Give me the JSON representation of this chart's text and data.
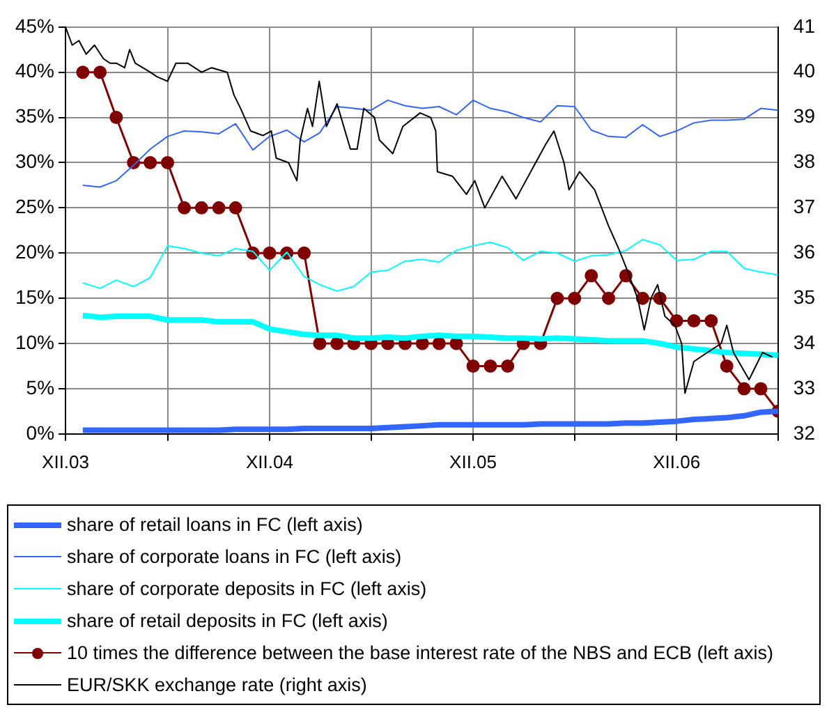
{
  "chart_data": {
    "type": "line",
    "xlim": [
      "2003-12",
      "2007-06"
    ],
    "xticks": [
      {
        "value": "2003-12",
        "label": "XII.03"
      },
      {
        "value": "2004-06",
        "label": null
      },
      {
        "value": "2004-12",
        "label": "XII.04"
      },
      {
        "value": "2005-06",
        "label": null
      },
      {
        "value": "2005-12",
        "label": "XII.05"
      },
      {
        "value": "2006-06",
        "label": null
      },
      {
        "value": "2006-12",
        "label": "XII.06"
      },
      {
        "value": "2007-06",
        "label": null
      }
    ],
    "ylim": [
      0,
      45
    ],
    "yticks": [
      {
        "value": 0,
        "label": "0%"
      },
      {
        "value": 5,
        "label": "5%"
      },
      {
        "value": 10,
        "label": "10%"
      },
      {
        "value": 15,
        "label": "15%"
      },
      {
        "value": 20,
        "label": "20%"
      },
      {
        "value": 25,
        "label": "25%"
      },
      {
        "value": 30,
        "label": "30%"
      },
      {
        "value": 35,
        "label": "35%"
      },
      {
        "value": 40,
        "label": "40%"
      },
      {
        "value": 45,
        "label": "45%"
      }
    ],
    "y2lim": [
      32,
      41
    ],
    "y2ticks": [
      32,
      33,
      34,
      35,
      36,
      37,
      38,
      39,
      40,
      41
    ],
    "grid": true,
    "legend": "bottom",
    "x": [
      "2004-01",
      "2004-02",
      "2004-03",
      "2004-04",
      "2004-05",
      "2004-06",
      "2004-07",
      "2004-08",
      "2004-09",
      "2004-10",
      "2004-11",
      "2004-12",
      "2005-01",
      "2005-02",
      "2005-03",
      "2005-04",
      "2005-05",
      "2005-06",
      "2005-07",
      "2005-08",
      "2005-09",
      "2005-10",
      "2005-11",
      "2005-12",
      "2006-01",
      "2006-02",
      "2006-03",
      "2006-04",
      "2006-05",
      "2006-06",
      "2006-07",
      "2006-08",
      "2006-09",
      "2006-10",
      "2006-11",
      "2006-12",
      "2007-01",
      "2007-02",
      "2007-03",
      "2007-04",
      "2007-05",
      "2007-06"
    ],
    "series": [
      {
        "name": "share of retail loans in FC (left axis)",
        "color": "#3366ff",
        "marker": "none",
        "values": [
          0.4,
          0.4,
          0.4,
          0.4,
          0.4,
          0.4,
          0.4,
          0.4,
          0.4,
          0.5,
          0.5,
          0.5,
          0.5,
          0.6,
          0.6,
          0.6,
          0.6,
          0.6,
          0.7,
          0.8,
          0.9,
          1.0,
          1.0,
          1.0,
          1.0,
          1.0,
          1.0,
          1.1,
          1.1,
          1.1,
          1.1,
          1.1,
          1.2,
          1.2,
          1.3,
          1.4,
          1.6,
          1.7,
          1.8,
          2.0,
          2.4,
          2.5
        ]
      },
      {
        "name": "share of corporate loans in FC (left axis)",
        "color": "#3366ff",
        "marker": "none",
        "values": [
          27.5,
          27.3,
          28.0,
          29.7,
          31.5,
          32.9,
          33.5,
          33.4,
          33.2,
          34.3,
          31.4,
          32.9,
          33.6,
          32.3,
          33.3,
          36.2,
          36.0,
          35.8,
          36.9,
          36.3,
          36.0,
          36.2,
          35.3,
          36.9,
          36.0,
          35.6,
          35.0,
          34.5,
          36.3,
          36.2,
          33.6,
          32.9,
          32.8,
          34.2,
          32.9,
          33.5,
          34.4,
          34.7,
          34.7,
          34.8,
          36.0,
          35.8
        ]
      },
      {
        "name": "share of corporate deposits in FC (left axis)",
        "color": "#00ffff",
        "marker": "none",
        "values": [
          16.7,
          16.1,
          17.0,
          16.3,
          17.3,
          20.8,
          20.5,
          20.0,
          19.7,
          20.5,
          20.2,
          18.1,
          20.1,
          17.4,
          16.5,
          15.8,
          16.3,
          17.9,
          18.1,
          19.1,
          19.3,
          19.0,
          20.3,
          20.8,
          21.2,
          20.6,
          19.2,
          20.2,
          20.0,
          19.1,
          19.7,
          19.8,
          20.3,
          21.5,
          20.9,
          19.2,
          19.3,
          20.2,
          20.2,
          18.3,
          17.9,
          17.6
        ]
      },
      {
        "name": "share of retail deposits in FC (left axis)",
        "color": "#00ffff",
        "marker": "none",
        "values": [
          13.1,
          12.9,
          13.0,
          13.0,
          13.0,
          12.6,
          12.6,
          12.6,
          12.4,
          12.4,
          12.4,
          11.6,
          11.3,
          11.0,
          10.9,
          10.9,
          10.6,
          10.6,
          10.7,
          10.6,
          10.8,
          10.9,
          10.8,
          10.8,
          10.7,
          10.6,
          10.6,
          10.5,
          10.6,
          10.5,
          10.4,
          10.3,
          10.3,
          10.3,
          10.0,
          9.6,
          9.4,
          9.2,
          9.0,
          8.9,
          8.8,
          8.7
        ]
      },
      {
        "name": "10 times the difference between the base interest rate of the NBS and ECB (left axis)",
        "color": "#800000",
        "marker": "circle",
        "values": [
          40,
          40,
          35,
          30,
          30,
          30,
          25,
          25,
          25,
          25,
          20,
          20,
          20,
          20,
          10,
          10,
          10,
          10,
          10,
          10,
          10,
          10,
          10,
          7.5,
          7.5,
          7.5,
          10,
          10,
          15,
          15,
          17.5,
          15,
          17.5,
          15,
          15,
          12.5,
          12.5,
          12.5,
          7.5,
          5,
          5,
          2.5
        ]
      },
      {
        "name": "EUR/SKK exchange rate (right axis)",
        "color": "#000000",
        "marker": "none",
        "axis": "y2",
        "x": [
          "2003-12-01",
          "2003-12-13",
          "2003-12-25",
          "2004-01-07",
          "2004-01-22",
          "2004-02-07",
          "2004-02-19",
          "2004-03-01",
          "2004-03-16",
          "2004-03-25",
          "2004-04-04",
          "2004-05-01",
          "2004-05-13",
          "2004-06-01",
          "2004-06-16",
          "2004-07-07",
          "2004-08-01",
          "2004-08-19",
          "2004-09-16",
          "2004-09-28",
          "2004-10-10",
          "2004-10-28",
          "2004-11-19",
          "2004-12-04",
          "2004-12-13",
          "2005-01-04",
          "2005-01-19",
          "2005-01-25",
          "2005-02-07",
          "2005-02-16",
          "2005-02-28",
          "2005-03-13",
          "2005-04-01",
          "2005-04-25",
          "2005-05-07",
          "2005-05-19",
          "2005-06-07",
          "2005-06-16",
          "2005-07-10",
          "2005-07-28",
          "2005-08-28",
          "2005-09-16",
          "2005-09-25",
          "2005-09-28",
          "2005-10-25",
          "2005-11-19",
          "2005-12-04",
          "2005-12-22",
          "2006-01-22",
          "2006-02-16",
          "2006-03-10",
          "2006-04-10",
          "2006-04-25",
          "2006-05-13",
          "2006-05-22",
          "2006-06-10",
          "2006-07-07",
          "2006-08-01",
          "2006-08-19",
          "2006-09-04",
          "2006-09-22",
          "2006-10-04",
          "2006-10-16",
          "2006-10-28",
          "2006-11-10",
          "2006-11-28",
          "2006-12-10",
          "2006-12-16",
          "2007-01-01",
          "2007-01-25",
          "2007-02-19",
          "2007-03-01",
          "2007-03-13",
          "2007-04-10",
          "2007-04-22",
          "2007-05-04",
          "2007-05-22"
        ],
        "values": [
          41.0,
          40.6,
          40.7,
          40.4,
          40.6,
          40.3,
          40.2,
          40.2,
          40.1,
          40.5,
          40.2,
          40.0,
          39.9,
          39.8,
          40.2,
          40.2,
          40.0,
          40.1,
          40.0,
          39.5,
          39.2,
          38.7,
          38.6,
          38.7,
          38.1,
          38.0,
          37.6,
          38.5,
          39.2,
          38.8,
          39.8,
          38.8,
          39.3,
          38.3,
          38.3,
          39.2,
          39.0,
          38.5,
          38.2,
          38.8,
          39.1,
          39.0,
          38.7,
          37.8,
          37.7,
          37.3,
          37.6,
          37.0,
          37.7,
          37.2,
          37.7,
          38.4,
          38.7,
          38.0,
          37.4,
          37.8,
          37.4,
          36.6,
          36.1,
          35.6,
          35.0,
          34.3,
          35.0,
          35.3,
          34.6,
          34.4,
          34.0,
          32.9,
          33.6,
          33.8,
          34.0,
          34.4,
          33.8,
          33.2,
          33.5,
          33.8,
          33.7
        ]
      }
    ]
  }
}
